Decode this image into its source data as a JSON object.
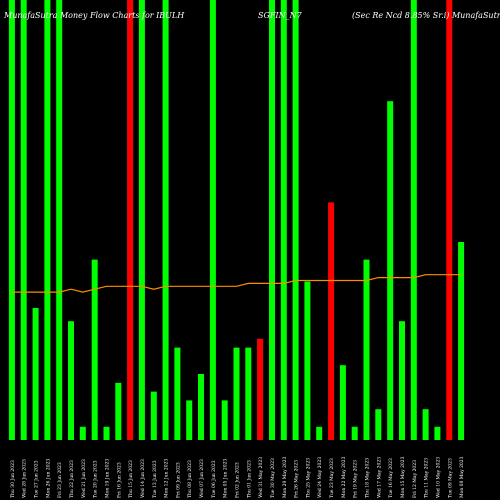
{
  "header": {
    "left": "MunafaSutra Money Flow Charts for IBULH",
    "middle": "SGFIN_N7",
    "right": "(Sec Re Ncd 8.85% Sr.i) MunafaSutra.com"
  },
  "colors": {
    "background": "#000000",
    "up": "#00ff00",
    "down": "#ff0000",
    "line": "#ff8c00",
    "text": "#ffffff"
  },
  "chart_data": {
    "type": "bar",
    "ylim": [
      0,
      100
    ],
    "grid": false,
    "categories": [
      "Fri 30 Jun 2023 ...",
      "Tue 27 Jun 2023 ...",
      "Mon 26 Jun 2023 ...",
      "Fri 23 Jun 2023 ...",
      "Wed 21 Jun 2023 ...",
      "Mon 19 Jun 2023 ...",
      "Fri 16 Jun 2023 ...",
      "Thu 15 Jun 2023 ...",
      "Wed 14 Jun 2023 ...",
      "Tue 13 Jun 2023 ...",
      "Mon 12 Jun 2023 ...",
      "Fri 09 Jun 2023 ...",
      "Wed 07 Jun 2023 ...",
      "Tue 06 Jun 2023 ...",
      "Mon 05 Jun 2023 ...",
      "Fri 02 Jun 2023 ...",
      "Thu 01 Jun 2023 ...",
      "Wed 31 May 2023 ...",
      "Tue 30 May 2023 ...",
      "Fri 26 May 2023 ...",
      "Thu 25 May 2023 ...",
      "Wed 24 May 2023 ...",
      "Tue 23 May 2023 ...",
      "Mon 22 May 2023 ...",
      "Fri 19 May 2023 ...",
      "Thu 18 May 2023 ...",
      "Wed 17 May 2023 ...",
      "Tue 16 May 2023 ...",
      "Mon 15 May 2023 ...",
      "Fri 12 May 2023 ...",
      "Thu 11 May 2023 ...",
      "Wed 10 May 2023 ...",
      "Tue 09 May 2023 ...",
      "Mon 08 May 2023 ...",
      "Fri 05 May 2023 ...",
      "Thu 04 May 2023 ...",
      "Wed 03 May 2023 ...",
      "Tue 02 May 2023 ...",
      "Fri 28 Apr 2023 ...",
      "Thu 27 Apr 2023 ...",
      "Wed 26 Apr 2023 ...",
      "Tue 25 Apr 2023 ...",
      "Mon 24 Apr 2023 ...",
      "Fri 21 Apr 2023 ...",
      "Thu 20 Apr 2023 ...",
      "Wed 19 Apr 2023 ...",
      "Tue 18 Apr 2023 ...",
      "Mon 17 Apr 2023 ...",
      "Thu 13 Apr 2023 ...",
      "Wed 12 Apr 2023 ...",
      "Tue 11 Apr 2023 ...",
      "Mon 10 Apr 2023 ...",
      "Thu 06 Apr 2023 ...",
      "Wed 05 Apr 2023 ...",
      "Mon 03 Apr 2023 ...",
      "Fri 31 Mar 2023 ...",
      "Wed 29 Mar 2023 ...",
      "Tue 28 Mar 2023 ..."
    ],
    "series": [
      {
        "values": [
          100,
          30,
          100,
          21,
          100,
          3,
          31,
          3,
          100,
          7,
          100,
          71,
          100,
          1,
          100,
          20,
          3,
          100,
          10,
          100,
          3,
          16,
          2,
          5,
          100,
          27,
          1,
          5,
          15,
          1,
          22,
          100,
          8,
          2,
          0,
          0,
          0,
          0,
          0,
          0,
          0,
          0,
          0,
          0,
          0,
          0,
          0,
          0,
          0,
          0,
          0,
          0,
          0,
          0,
          0,
          0,
          0,
          0
        ],
        "directions": [
          "up",
          "up",
          "up",
          "up",
          "up",
          "up",
          "up",
          "up",
          "up",
          "up",
          "up",
          "up",
          "up",
          "up",
          "up",
          "up",
          "up",
          "up",
          "up",
          "up",
          "up",
          "up",
          "up",
          "up",
          "up",
          "up",
          "up",
          "up",
          "up",
          "up",
          "up",
          "up",
          "up",
          "up",
          "up",
          "up",
          "up",
          "up",
          "up",
          "up",
          "up",
          "up",
          "up",
          "up",
          "up",
          "up",
          "up",
          "up",
          "up",
          "up",
          "up",
          "up",
          "up",
          "up",
          "up",
          "up",
          "up",
          "up"
        ]
      }
    ]
  },
  "bars": [
    {
      "h": 100,
      "c": "up"
    },
    {
      "h": 100,
      "c": "up"
    },
    {
      "h": 30,
      "c": "up"
    },
    {
      "h": 100,
      "c": "up"
    },
    {
      "h": 100,
      "c": "up"
    },
    {
      "h": 27,
      "c": "up"
    },
    {
      "h": 3,
      "c": "up"
    },
    {
      "h": 41,
      "c": "up"
    },
    {
      "h": 3,
      "c": "up"
    },
    {
      "h": 13,
      "c": "up"
    },
    {
      "h": 100,
      "c": "down"
    },
    {
      "h": 100,
      "c": "up"
    },
    {
      "h": 11,
      "c": "up"
    },
    {
      "h": 100,
      "c": "up"
    },
    {
      "h": 21,
      "c": "up"
    },
    {
      "h": 9,
      "c": "up"
    },
    {
      "h": 15,
      "c": "up"
    },
    {
      "h": 100,
      "c": "up"
    },
    {
      "h": 9,
      "c": "up"
    },
    {
      "h": 21,
      "c": "up"
    },
    {
      "h": 21,
      "c": "up"
    },
    {
      "h": 23,
      "c": "down"
    },
    {
      "h": 100,
      "c": "up"
    },
    {
      "h": 100,
      "c": "up"
    },
    {
      "h": 100,
      "c": "up"
    },
    {
      "h": 36,
      "c": "up"
    },
    {
      "h": 3,
      "c": "up"
    },
    {
      "h": 54,
      "c": "down"
    },
    {
      "h": 17,
      "c": "up"
    },
    {
      "h": 3,
      "c": "up"
    },
    {
      "h": 41,
      "c": "up"
    },
    {
      "h": 7,
      "c": "up"
    },
    {
      "h": 77,
      "c": "up"
    },
    {
      "h": 27,
      "c": "up"
    },
    {
      "h": 100,
      "c": "up"
    },
    {
      "h": 7,
      "c": "up"
    },
    {
      "h": 3,
      "c": "up"
    },
    {
      "h": 100,
      "c": "down"
    },
    {
      "h": 45,
      "c": "up"
    }
  ],
  "money_flow_line": [
    51,
    51,
    51,
    51,
    51,
    52,
    51,
    52,
    53,
    53,
    53,
    53,
    52,
    53,
    53,
    53,
    53,
    53,
    53,
    53,
    54,
    54,
    54,
    54,
    55,
    55,
    55,
    55,
    55,
    55,
    55,
    56,
    56,
    56,
    56,
    57,
    57,
    57,
    57
  ],
  "x_labels": [
    "Thu 30 Jun 2023",
    "Wed 28 Jun 2023",
    "Tue 27 Jun 2023",
    "Mon 26 Jun 2023",
    "Fri 23 Jun 2023",
    "Thu 22 Jun 2023",
    "Wed 21 Jun 2023",
    "Tue 20 Jun 2023",
    "Mon 19 Jun 2023",
    "Fri 16 Jun 2023",
    "Thu 15 Jun 2023",
    "Wed 14 Jun 2023",
    "Tue 13 Jun 2023",
    "Mon 12 Jun 2023",
    "Fri 09 Jun 2023",
    "Thu 08 Jun 2023",
    "Wed 07 Jun 2023",
    "Tue 06 Jun 2023",
    "Mon 05 Jun 2023",
    "Fri 02 Jun 2023",
    "Thu 01 Jun 2023",
    "Wed 31 May 2023",
    "Tue 30 May 2023",
    "Mon 29 May 2023",
    "Fri 26 May 2023",
    "Thu 25 May 2023",
    "Wed 24 May 2023",
    "Tue 23 May 2023",
    "Mon 22 May 2023",
    "Fri 19 May 2023",
    "Thu 18 May 2023",
    "Wed 17 May 2023",
    "Tue 16 May 2023",
    "Mon 15 May 2023",
    "Fri 12 May 2023",
    "Thu 11 May 2023",
    "Wed 10 May 2023",
    "Tue 09 May 2023",
    "Mon 08 May 2023"
  ]
}
